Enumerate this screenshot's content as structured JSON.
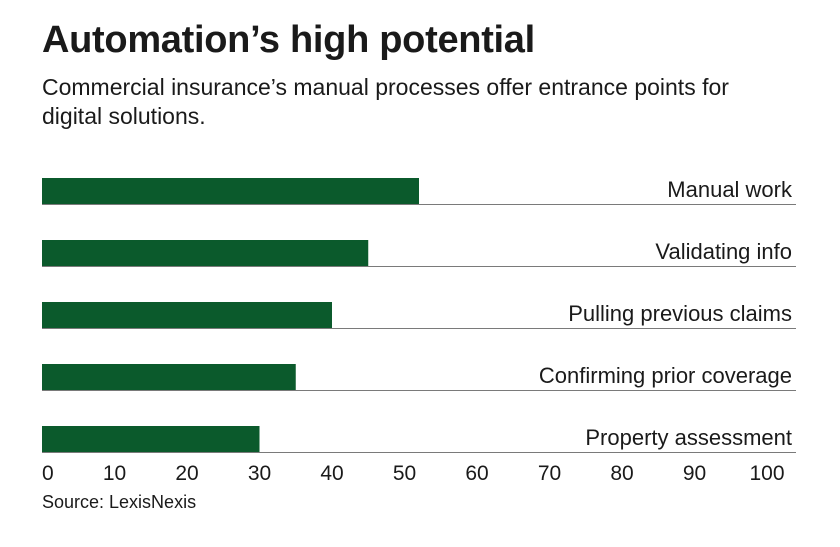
{
  "header": {
    "title": "Automation’s high potential",
    "subtitle": "Commercial insurance’s manual processes offer entrance points for digital solutions."
  },
  "footer": {
    "source": "Source: LexisNexis"
  },
  "colors": {
    "bar": "#0b5a2c",
    "baseline": "#7a7a7a",
    "text": "#1a1a1a"
  },
  "chart_data": {
    "type": "bar",
    "orientation": "horizontal",
    "categories": [
      "Manual work",
      "Validating info",
      "Pulling previous claims",
      "Confirming prior coverage",
      "Property assessment"
    ],
    "values": [
      52,
      45,
      40,
      35,
      30
    ],
    "title": "Automation’s high potential",
    "subtitle": "Commercial insurance’s manual processes offer entrance points for digital solutions.",
    "xlabel": "",
    "ylabel": "",
    "xlim": [
      0,
      100
    ],
    "ticks": [
      0,
      10,
      20,
      30,
      40,
      50,
      60,
      70,
      80,
      90,
      100
    ],
    "grid": false,
    "legend": "none",
    "source": "Source: LexisNexis"
  }
}
